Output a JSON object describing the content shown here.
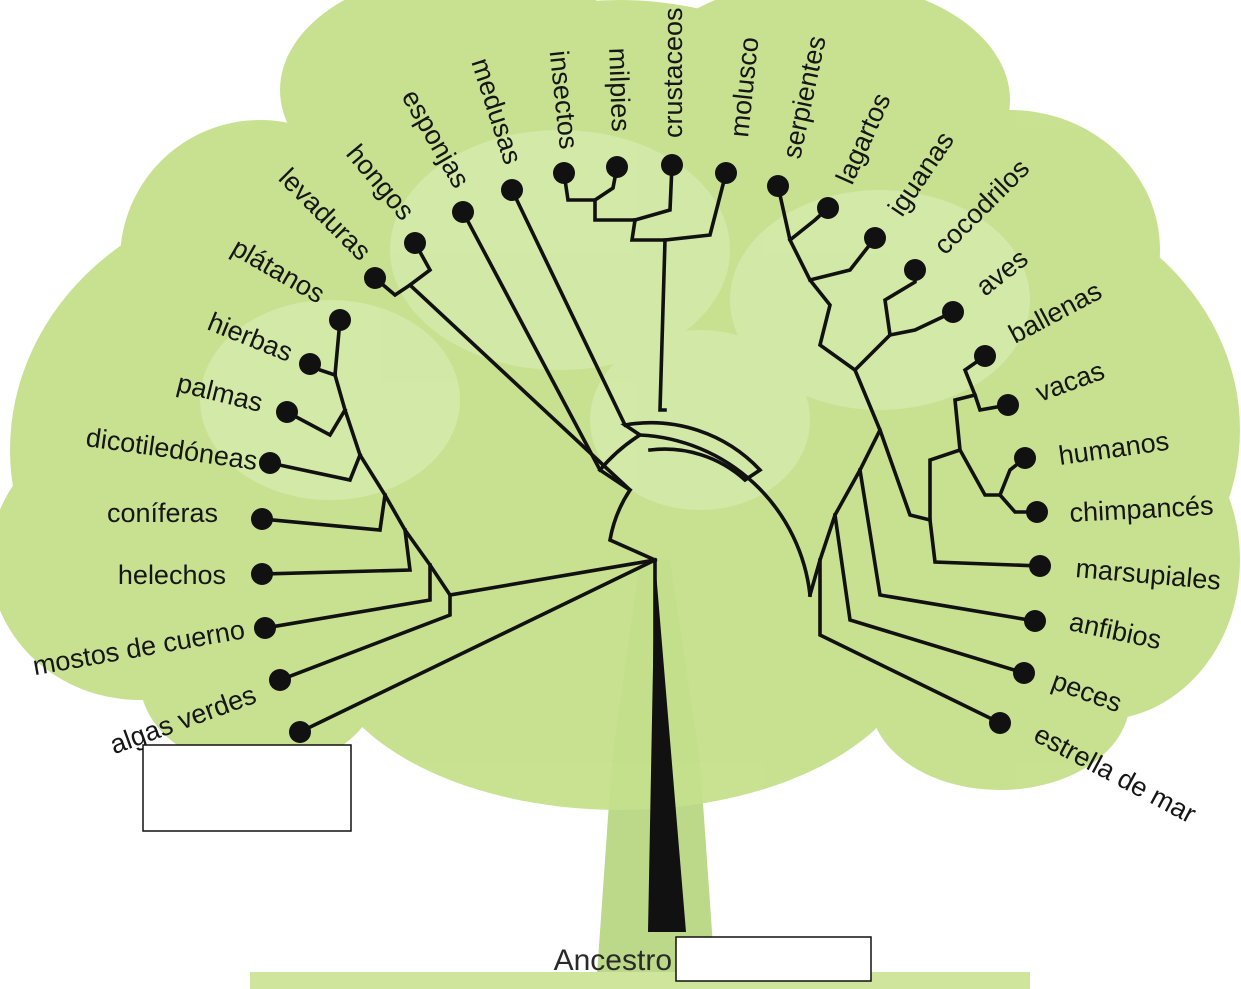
{
  "root_label": "Ancestro",
  "colors": {
    "foliage": "#c5e08c",
    "foliage_light": "#d9edb3",
    "trunk": "#bcd98a",
    "ink": "#111111"
  },
  "taxa": {
    "algas_verdes": "algas verdes",
    "mostos_de_cuerno": "mostos de cuerno",
    "helechos": "helechos",
    "coniferas": "coníferas",
    "dicotiledoneas": "dicotiledóneas",
    "palmas": "palmas",
    "hierbas": "hierbas",
    "platanos": "plátanos",
    "levaduras": "levaduras",
    "hongos": "hongos",
    "esponjas": "esponjas",
    "medusas": "medusas",
    "insectos": "insectos",
    "milpies": "milpies",
    "crustaceos": "crustaceos",
    "molusco": "molusco",
    "serpientes": "serpientes",
    "lagartos": "lagartos",
    "iguanas": "iguanas",
    "cocodrilos": "cocodrilos",
    "aves": "aves",
    "ballenas": "ballenas",
    "vacas": "vacas",
    "humanos": "humanos",
    "chimpances": "chimpancés",
    "marsupiales": "marsupiales",
    "anfibios": "anfibios",
    "peces": "peces",
    "estrella_de_mar": "estrella de mar"
  }
}
